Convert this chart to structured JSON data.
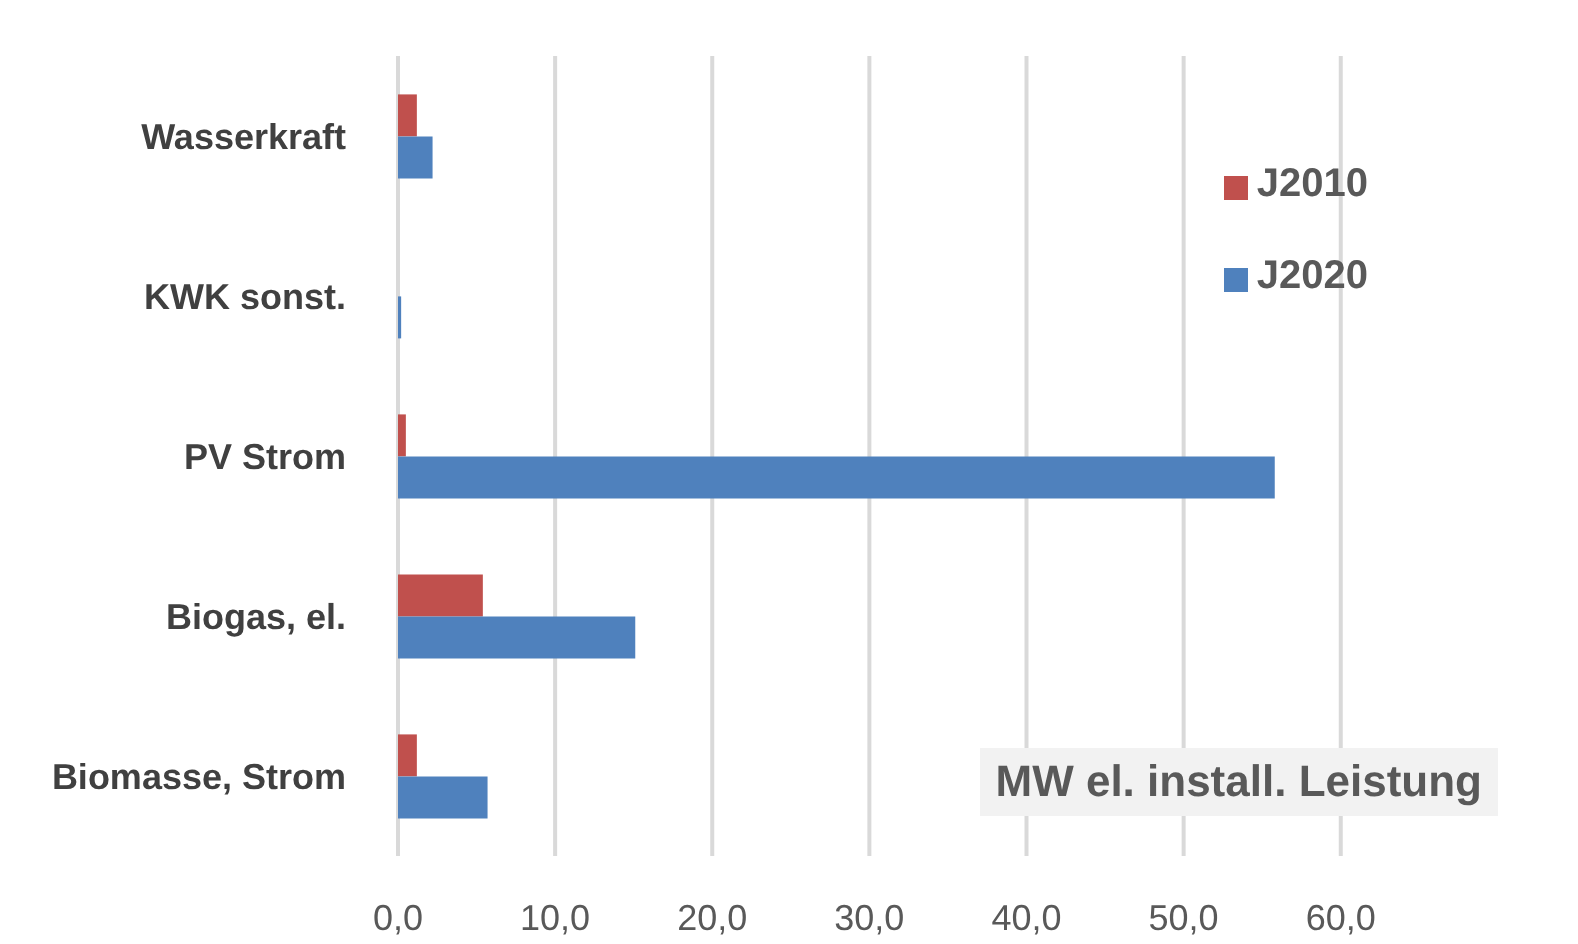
{
  "chart_data": {
    "type": "bar",
    "orientation": "horizontal",
    "title": "MW el. install. Leistung",
    "categories": [
      "Wasserkraft",
      "KWK sonst.",
      "PV Strom",
      "Biogas, el.",
      "Biomasse, Strom"
    ],
    "series": [
      {
        "name": "J2010",
        "color": "#c0504d",
        "values": [
          1.2,
          0,
          0.5,
          5.4,
          1.2
        ]
      },
      {
        "name": "J2020",
        "color": "#4f81bd",
        "values": [
          2.2,
          0.2,
          55.8,
          15.1,
          5.7
        ]
      }
    ],
    "xlim": [
      0,
      60
    ],
    "xticks": [
      {
        "value": 0,
        "label": "0,0"
      },
      {
        "value": 10,
        "label": "10,0"
      },
      {
        "value": 20,
        "label": "20,0"
      },
      {
        "value": 30,
        "label": "30,0"
      },
      {
        "value": 40,
        "label": "40,0"
      },
      {
        "value": 50,
        "label": "50,0"
      },
      {
        "value": 60,
        "label": "60,0"
      }
    ],
    "grid": "x",
    "legend": "top right"
  }
}
